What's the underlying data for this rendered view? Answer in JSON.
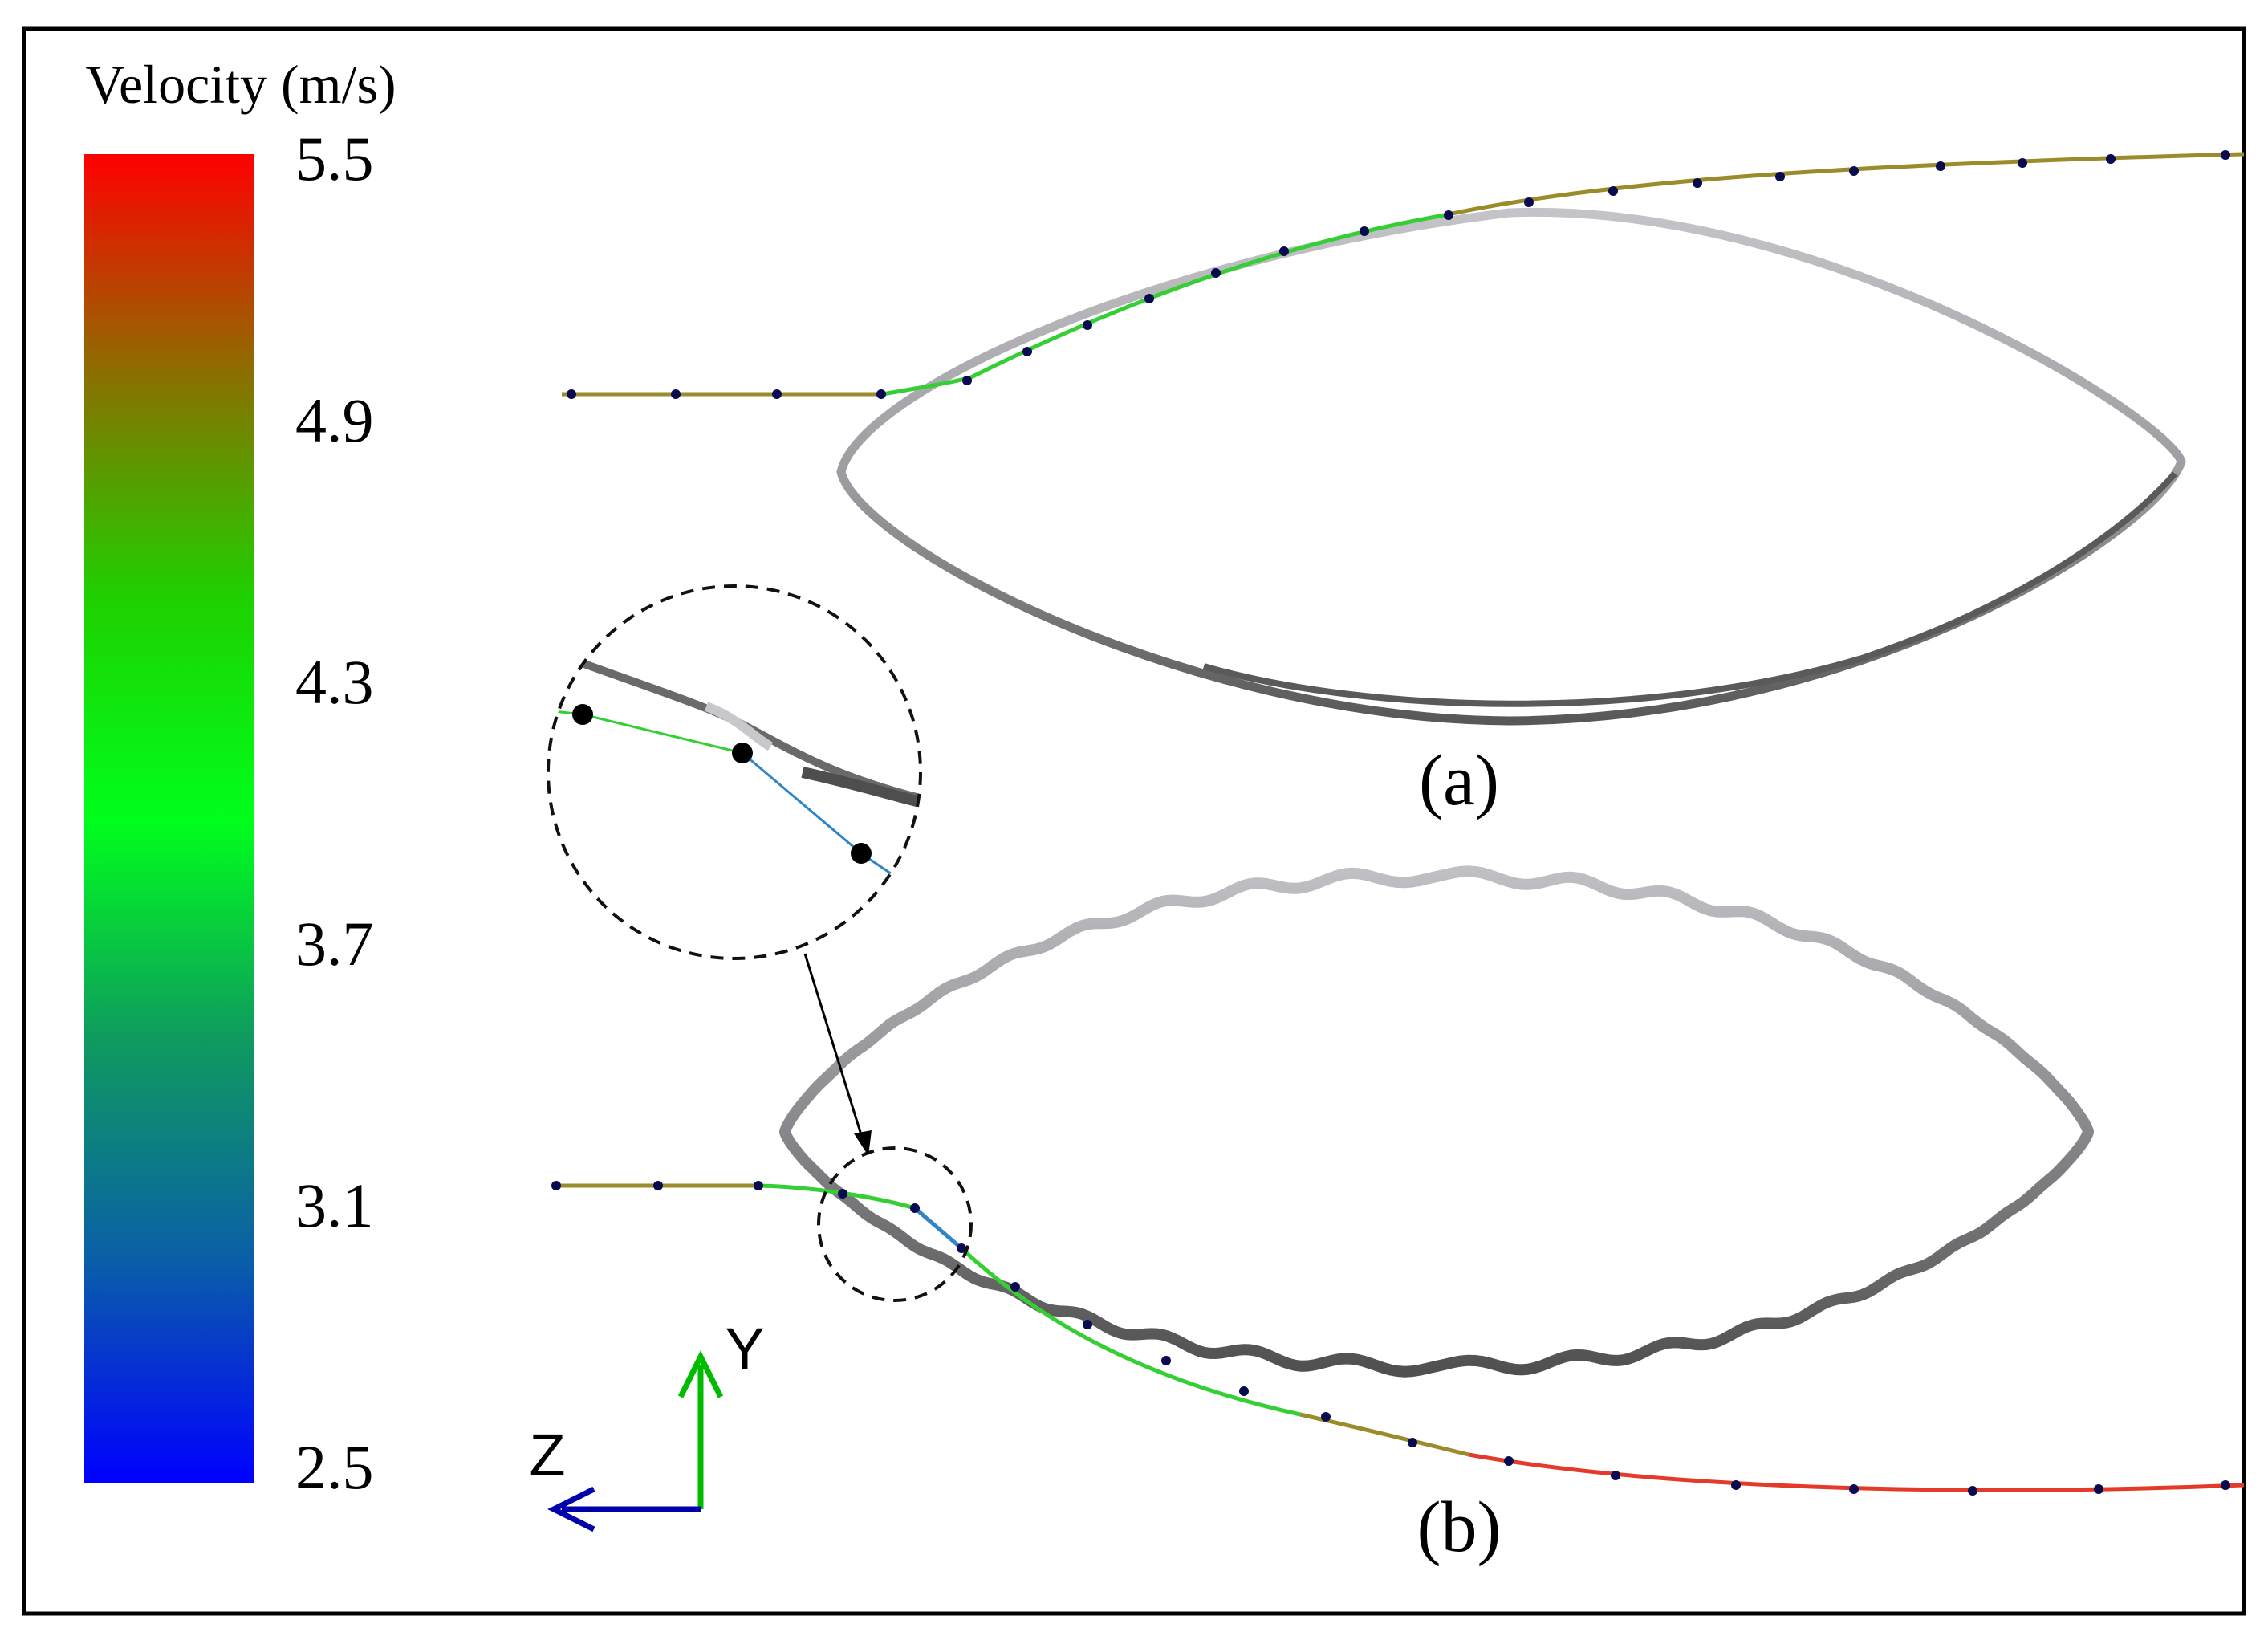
{
  "colorbar": {
    "title": "Velocity (m/s)",
    "ticks": [
      "5.5",
      "4.9",
      "4.3",
      "3.7",
      "3.1",
      "2.5"
    ],
    "colors": [
      "#ff0000",
      "#8a7000",
      "#1fd000",
      "#00ff1c",
      "#0f9a60",
      "#0a5fa8",
      "#0000ff"
    ]
  },
  "panels": {
    "a_label": "(a)",
    "b_label": "(b)"
  },
  "axes": {
    "y_label": "Y",
    "z_label": "Z",
    "y_color": "#00bb00",
    "z_color": "#0000aa"
  },
  "colors": {
    "border": "#000000",
    "shell_light": "#c0c0c4",
    "shell_dark": "#5c5c5c",
    "stream_tan": "#9a8c2a",
    "stream_green": "#35cf35",
    "stream_blue": "#2e86c8",
    "stream_red": "#e43a2a",
    "marker": "#0a0a50"
  }
}
